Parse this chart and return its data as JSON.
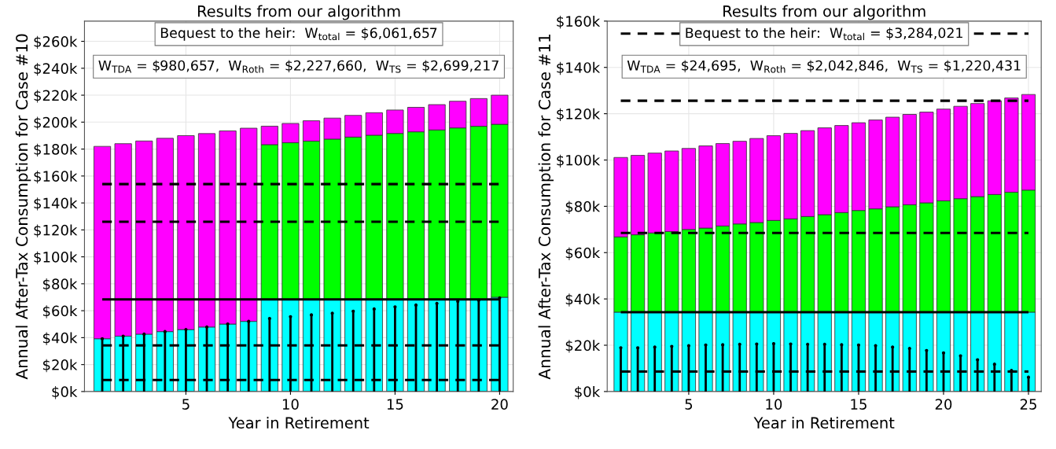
{
  "chart_data": [
    {
      "type": "bar",
      "stacked": true,
      "title": "Results from our algorithm",
      "xlabel": "Year in Retirement",
      "ylabel": "Annual After-Tax Consumption for Case #10",
      "x": [
        1,
        2,
        3,
        4,
        5,
        6,
        7,
        8,
        9,
        10,
        11,
        12,
        13,
        14,
        15,
        16,
        17,
        18,
        19,
        20
      ],
      "series": [
        {
          "color": "#00ffff",
          "values": [
            39200,
            41100,
            42600,
            44500,
            46000,
            47900,
            50100,
            52100,
            68000,
            68000,
            68000,
            68000,
            68000,
            68000,
            68000,
            68000,
            68000,
            68000,
            68000,
            70000
          ]
        },
        {
          "color": "#00ff00",
          "values": [
            null,
            null,
            null,
            null,
            null,
            null,
            null,
            null,
            115300,
            116700,
            117900,
            119400,
            120900,
            122300,
            123600,
            124800,
            126200,
            127700,
            128900,
            128400
          ]
        },
        {
          "color": "#ff00ff",
          "values": [
            142800,
            142900,
            143400,
            143500,
            144000,
            143600,
            143400,
            143400,
            13700,
            14300,
            15100,
            15600,
            16100,
            16700,
            17400,
            18200,
            18800,
            19800,
            20600,
            21600
          ]
        },
        {
          "type": "lollipop",
          "color": "#000000",
          "values": [
            39200,
            41100,
            42600,
            44500,
            46000,
            47900,
            50100,
            52100,
            54200,
            55500,
            56900,
            58100,
            59600,
            61300,
            62800,
            64200,
            65400,
            66900,
            67800,
            69500
          ]
        }
      ],
      "ref_lines": [
        {
          "axis": "y",
          "value": 154000,
          "color": "#000000",
          "line_style": "dashed"
        },
        {
          "axis": "y",
          "value": 126000,
          "color": "#000000",
          "line_style": "dashed"
        },
        {
          "axis": "y",
          "value": 68400,
          "color": "#000000",
          "line_style": "solid"
        },
        {
          "axis": "y",
          "value": 34300,
          "color": "#000000",
          "line_style": "dashed"
        },
        {
          "axis": "y",
          "value": 8600,
          "color": "#000000",
          "line_style": "dashed"
        }
      ],
      "annotations": [
        "Bequest to the heir:  W$_{total}$ = $6,061,657",
        "W$_{TDA}$ = $980,657,  W$_{Roth}$ = $2,227,660,  W$_{TS}$ = $2,699,217"
      ],
      "xlim": [
        0.15,
        20.65
      ],
      "xticks": [
        5,
        10,
        15,
        20
      ],
      "ylim": [
        0,
        275000
      ],
      "yticks": [
        {
          "value": 0,
          "label": "$0k"
        },
        {
          "value": 20000,
          "label": "$20k"
        },
        {
          "value": 40000,
          "label": "$40k"
        },
        {
          "value": 60000,
          "label": "$60k"
        },
        {
          "value": 80000,
          "label": "$80k"
        },
        {
          "value": 100000,
          "label": "$100k"
        },
        {
          "value": 120000,
          "label": "$120k"
        },
        {
          "value": 140000,
          "label": "$140k"
        },
        {
          "value": 160000,
          "label": "$160k"
        },
        {
          "value": 180000,
          "label": "$180k"
        },
        {
          "value": 200000,
          "label": "$200k"
        },
        {
          "value": 220000,
          "label": "$220k"
        },
        {
          "value": 240000,
          "label": "$240k"
        },
        {
          "value": 260000,
          "label": "$260k"
        }
      ],
      "grid": true
    },
    {
      "type": "bar",
      "stacked": true,
      "title": "Results from our algorithm",
      "xlabel": "Year in Retirement",
      "ylabel": "Annual After-Tax Consumption for Case #11",
      "x": [
        1,
        2,
        3,
        4,
        5,
        6,
        7,
        8,
        9,
        10,
        11,
        12,
        13,
        14,
        15,
        16,
        17,
        18,
        19,
        20,
        21,
        22,
        23,
        24,
        25
      ],
      "series": [
        {
          "color": "#00ffff",
          "values": [
            34300,
            34300,
            34300,
            34300,
            34300,
            34300,
            34300,
            34300,
            34300,
            34300,
            34300,
            34300,
            34300,
            34300,
            34300,
            34300,
            34300,
            34300,
            34300,
            34300,
            34300,
            34300,
            34300,
            34300,
            34300
          ]
        },
        {
          "color": "#00ff00",
          "values": [
            32500,
            33400,
            34200,
            34800,
            35700,
            36300,
            37200,
            38100,
            38700,
            39600,
            40300,
            41300,
            42100,
            43000,
            43900,
            44600,
            45500,
            46400,
            47200,
            48100,
            49000,
            49900,
            50800,
            51800,
            52700
          ]
        },
        {
          "color": "#ff00ff",
          "values": [
            34300,
            34300,
            34500,
            34800,
            35000,
            35500,
            35600,
            35700,
            36300,
            36600,
            36900,
            37100,
            37500,
            37600,
            37900,
            38400,
            38700,
            39000,
            39200,
            39600,
            39900,
            40200,
            40500,
            40700,
            41300
          ]
        },
        {
          "type": "lollipop",
          "color": "#000000",
          "values": [
            18900,
            18900,
            19200,
            19500,
            19800,
            20100,
            20200,
            20400,
            20500,
            20700,
            20500,
            20400,
            20400,
            20200,
            20100,
            19800,
            19200,
            18600,
            17700,
            16700,
            15400,
            13700,
            11800,
            9100,
            6200
          ]
        }
      ],
      "ref_lines": [
        {
          "axis": "y",
          "value": 154600,
          "color": "#000000",
          "line_style": "dashed"
        },
        {
          "axis": "y",
          "value": 125600,
          "color": "#000000",
          "line_style": "dashed"
        },
        {
          "axis": "y",
          "value": 68500,
          "color": "#000000",
          "line_style": "dashed"
        },
        {
          "axis": "y",
          "value": 34300,
          "color": "#000000",
          "line_style": "solid"
        },
        {
          "axis": "y",
          "value": 8600,
          "color": "#000000",
          "line_style": "dashed"
        }
      ],
      "annotations": [
        "Bequest to the heir:  W$_{total}$ = $3,284,021",
        "W$_{TDA}$ = $24,695,  W$_{Roth}$ = $2,042,846,  W$_{TS}$ = $1,220,431"
      ],
      "xlim": [
        0.2,
        25.75
      ],
      "xticks": [
        5,
        10,
        15,
        20,
        25
      ],
      "ylim": [
        0,
        160000
      ],
      "yticks": [
        {
          "value": 0,
          "label": "$0k"
        },
        {
          "value": 20000,
          "label": "$20k"
        },
        {
          "value": 40000,
          "label": "$40k"
        },
        {
          "value": 60000,
          "label": "$60k"
        },
        {
          "value": 80000,
          "label": "$80k"
        },
        {
          "value": 100000,
          "label": "$100k"
        },
        {
          "value": 120000,
          "label": "$120k"
        },
        {
          "value": 140000,
          "label": "$140k"
        },
        {
          "value": 160000,
          "label": "$160k"
        }
      ],
      "grid": true
    }
  ]
}
